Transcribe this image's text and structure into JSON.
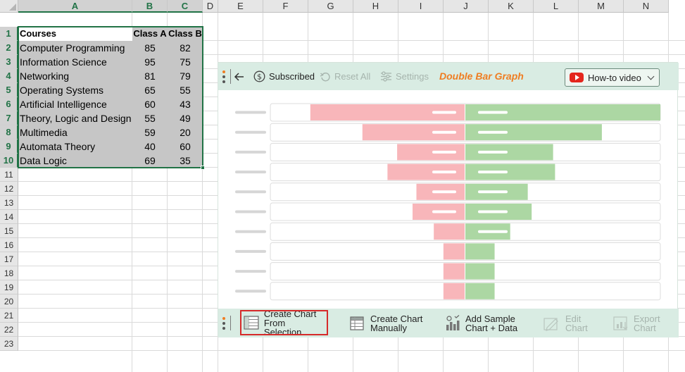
{
  "spreadsheet": {
    "columns": [
      "A",
      "B",
      "C",
      "D",
      "E",
      "F",
      "G",
      "H",
      "I",
      "J",
      "K",
      "L",
      "M",
      "N"
    ],
    "rows": [
      "1",
      "2",
      "3",
      "4",
      "5",
      "6",
      "7",
      "8",
      "9",
      "10",
      "11",
      "12",
      "13",
      "14",
      "15",
      "16",
      "17",
      "18",
      "19",
      "20",
      "21",
      "22",
      "23"
    ],
    "headers": [
      "Courses",
      "Class A",
      "Class B"
    ],
    "data": [
      {
        "course": "Computer Programming",
        "a": "85",
        "b": "82"
      },
      {
        "course": "Information Science",
        "a": "95",
        "b": "75"
      },
      {
        "course": "Networking",
        "a": "81",
        "b": "79"
      },
      {
        "course": "Operating Systems",
        "a": "65",
        "b": "55"
      },
      {
        "course": "Artificial Intelligence",
        "a": "60",
        "b": "43"
      },
      {
        "course": "Theory, Logic and Design",
        "a": "55",
        "b": "49"
      },
      {
        "course": "Multimedia",
        "a": "59",
        "b": "20"
      },
      {
        "course": "Automata Theory",
        "a": "40",
        "b": "60"
      },
      {
        "course": "Data Logic",
        "a": "69",
        "b": "35"
      }
    ]
  },
  "panel": {
    "toolbar": {
      "subscribed": "Subscribed",
      "reset_all": "Reset All",
      "settings": "Settings",
      "title": "Double Bar Graph",
      "howto": "How-to video"
    },
    "bottom": {
      "create_sel_1": "Create Chart",
      "create_sel_2": "From Selection",
      "create_man_1": "Create Chart",
      "create_man_2": "Manually",
      "add_sample_1": "Add Sample",
      "add_sample_2": "Chart + Data",
      "edit_1": "Edit",
      "edit_2": "Chart",
      "export_1": "Export",
      "export_2": "Chart"
    },
    "colors": {
      "left_bar": "#f8b6ba",
      "right_bar": "#acd7a3",
      "brand": "#ef7d22",
      "toolbar_bg": "#d9ece3"
    }
  },
  "chart_data": {
    "type": "bar",
    "note_series": [
      "left",
      "right"
    ],
    "series": [
      {
        "values": [
          80,
          53,
          35,
          40,
          25,
          27,
          16,
          11,
          11,
          11
        ]
      },
      {
        "values": [
          100,
          70,
          45,
          46,
          32,
          34,
          23,
          15,
          15,
          15
        ]
      }
    ],
    "row_count": 10
  }
}
